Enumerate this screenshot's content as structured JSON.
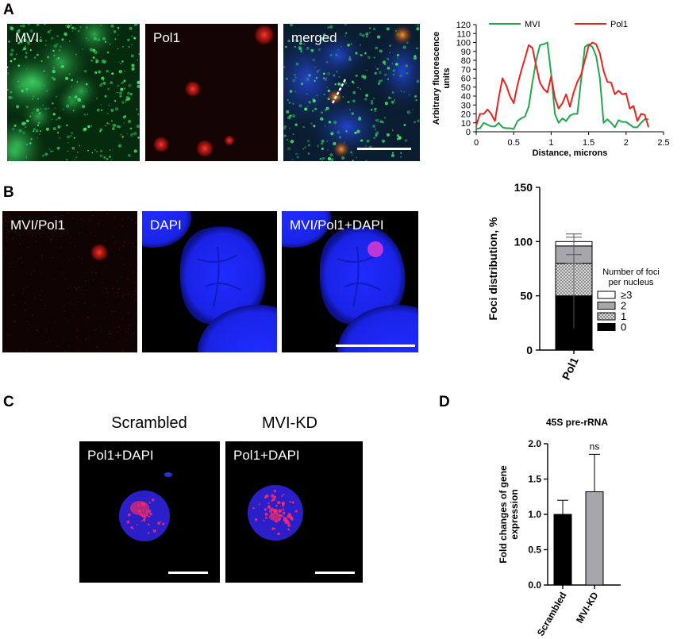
{
  "panels": {
    "a": "A",
    "b": "B",
    "c": "C",
    "d": "D"
  },
  "panel_a": {
    "images": [
      {
        "label": "MVI",
        "channel": "green"
      },
      {
        "label": "Pol1",
        "channel": "red"
      },
      {
        "label": "merged",
        "channel": "merge"
      }
    ]
  },
  "panel_b": {
    "images": [
      {
        "label": "MVI/Pol1"
      },
      {
        "label": "DAPI"
      },
      {
        "label": "MVI/Pol1+DAPI"
      }
    ]
  },
  "panel_c": {
    "conditions": [
      {
        "title": "Scrambled",
        "label": "Pol1+DAPI"
      },
      {
        "title": "MVI-KD",
        "label": "Pol1+DAPI"
      }
    ]
  },
  "colors": {
    "green": "#1fa84f",
    "red": "#e8241f",
    "nucleus": "#1a23e6",
    "bar_black": "#000000",
    "bar_grey": "#a6a6ac"
  },
  "chart_data": [
    {
      "type": "line",
      "title": "",
      "xlabel": "Distance, microns",
      "ylabel": "Arbitrary fluorescence units",
      "xlim": [
        0,
        2.5
      ],
      "ylim": [
        0,
        120
      ],
      "xticks": [
        "0",
        "0.5",
        "1",
        "1.5",
        "2",
        "2.5"
      ],
      "yticks": [
        "0",
        "10",
        "20",
        "30",
        "40",
        "50",
        "60",
        "70",
        "80",
        "90",
        "100",
        "110",
        "120"
      ],
      "legend": "top",
      "grid": false,
      "series": [
        {
          "name": "MVI",
          "color": "#1fa84f",
          "x": [
            0,
            0.05,
            0.1,
            0.15,
            0.2,
            0.25,
            0.3,
            0.35,
            0.4,
            0.45,
            0.5,
            0.55,
            0.6,
            0.65,
            0.7,
            0.75,
            0.8,
            0.85,
            0.9,
            0.95,
            1.0,
            1.05,
            1.1,
            1.15,
            1.2,
            1.25,
            1.3,
            1.35,
            1.4,
            1.45,
            1.5,
            1.55,
            1.6,
            1.65,
            1.7,
            1.75,
            1.8,
            1.85,
            1.9,
            1.95,
            2.0,
            2.05,
            2.1,
            2.15,
            2.2,
            2.25,
            2.3
          ],
          "y": [
            3,
            4,
            10,
            8,
            6,
            6,
            10,
            5,
            4,
            4,
            3,
            12,
            15,
            17,
            28,
            55,
            80,
            97,
            98,
            100,
            65,
            20,
            10,
            15,
            12,
            18,
            20,
            20,
            58,
            95,
            98,
            95,
            85,
            60,
            10,
            14,
            10,
            5,
            13,
            11,
            11,
            8,
            5,
            5,
            10,
            14,
            14
          ]
        },
        {
          "name": "Pol1",
          "color": "#e8241f",
          "x": [
            0,
            0.05,
            0.1,
            0.15,
            0.2,
            0.25,
            0.3,
            0.35,
            0.4,
            0.45,
            0.5,
            0.55,
            0.6,
            0.65,
            0.7,
            0.75,
            0.8,
            0.85,
            0.9,
            0.95,
            1.0,
            1.05,
            1.1,
            1.15,
            1.2,
            1.25,
            1.3,
            1.35,
            1.4,
            1.45,
            1.5,
            1.55,
            1.6,
            1.65,
            1.7,
            1.75,
            1.8,
            1.85,
            1.9,
            1.95,
            2.0,
            2.05,
            2.1,
            2.15,
            2.2,
            2.25,
            2.3
          ],
          "y": [
            7,
            20,
            20,
            25,
            20,
            12,
            38,
            60,
            52,
            40,
            32,
            52,
            68,
            82,
            97,
            94,
            74,
            55,
            48,
            44,
            62,
            38,
            26,
            32,
            42,
            28,
            44,
            56,
            64,
            80,
            96,
            100,
            98,
            88,
            68,
            56,
            55,
            42,
            46,
            42,
            43,
            26,
            29,
            12,
            20,
            19,
            5
          ]
        }
      ]
    },
    {
      "type": "bar",
      "stacked": true,
      "title": "",
      "categories": [
        "Pol1"
      ],
      "ylabel": "Foci distribution, %",
      "ylim": [
        0,
        150
      ],
      "yticks": [
        "0",
        "50",
        "100",
        "150"
      ],
      "legend_title": "Number of foci per nucleus",
      "legend": "right",
      "series": [
        {
          "name": "0",
          "values": [
            50
          ],
          "fill": "#000000",
          "error": 30
        },
        {
          "name": "1",
          "values": [
            30
          ],
          "fill": "dotted",
          "error": 8
        },
        {
          "name": "2",
          "values": [
            16
          ],
          "fill": "#a6a6ac",
          "error": 8
        },
        {
          "name": "≥3",
          "values": [
            4
          ],
          "fill": "#ffffff",
          "error": 7
        }
      ]
    },
    {
      "type": "bar",
      "title": "45S  pre-rRNA",
      "categories": [
        "Scrambled",
        "MVI-KD"
      ],
      "values": [
        1.0,
        1.32
      ],
      "errors": [
        0.2,
        0.53
      ],
      "colors": [
        "#000000",
        "#a6a6ac"
      ],
      "ylabel": "Fold changes of gene expression",
      "ylim": [
        0,
        2.0
      ],
      "yticks": [
        "0.0",
        "0.5",
        "1.0",
        "1.5",
        "2.0"
      ],
      "annotations": [
        {
          "category": "MVI-KD",
          "text": "ns"
        }
      ]
    }
  ]
}
